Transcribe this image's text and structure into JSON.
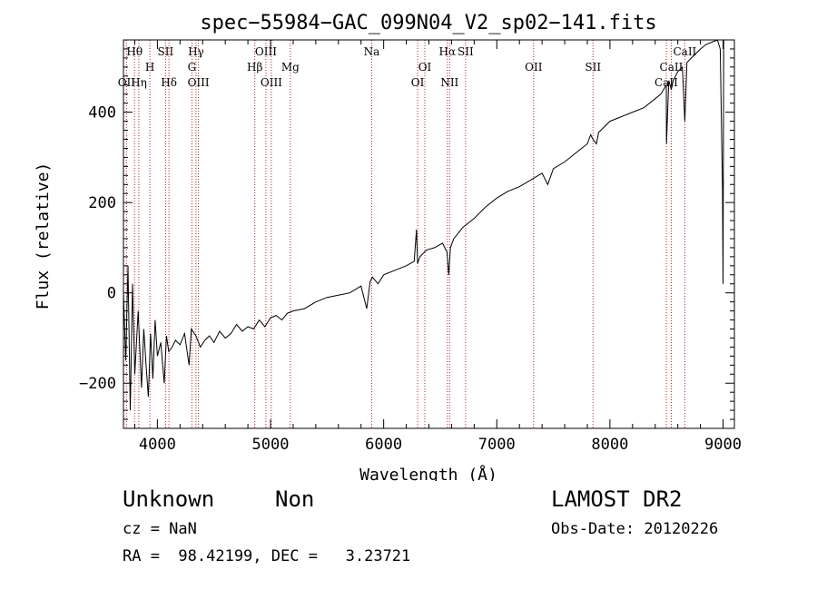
{
  "chart_data": {
    "type": "line",
    "title": "spec−55984−GAC_099N04_V2_sp02−141.fits",
    "xlabel": "Wavelength (Å)",
    "ylabel": "Flux (relative)",
    "xlim": [
      3700,
      9100
    ],
    "ylim": [
      -300,
      560
    ],
    "x_ticks": [
      4000,
      5000,
      6000,
      7000,
      8000,
      9000
    ],
    "y_ticks": [
      -200,
      0,
      200,
      400
    ],
    "line_color": "#000000",
    "marker_color": "#b22222",
    "spectrum": {
      "x": [
        3700,
        3720,
        3740,
        3760,
        3780,
        3800,
        3830,
        3860,
        3880,
        3900,
        3920,
        3940,
        3960,
        3980,
        4000,
        4030,
        4060,
        4080,
        4100,
        4130,
        4160,
        4200,
        4240,
        4280,
        4300,
        4340,
        4380,
        4420,
        4460,
        4500,
        4550,
        4600,
        4650,
        4700,
        4750,
        4800,
        4850,
        4900,
        4950,
        5000,
        5050,
        5100,
        5150,
        5200,
        5300,
        5400,
        5500,
        5600,
        5700,
        5800,
        5850,
        5880,
        5900,
        5950,
        6000,
        6100,
        6200,
        6270,
        6290,
        6300,
        6320,
        6380,
        6450,
        6520,
        6560,
        6575,
        6590,
        6620,
        6700,
        6800,
        6900,
        7000,
        7100,
        7200,
        7300,
        7400,
        7450,
        7500,
        7600,
        7700,
        7800,
        7830,
        7850,
        7880,
        7900,
        8000,
        8100,
        8200,
        8300,
        8400,
        8450,
        8498,
        8500,
        8520,
        8542,
        8560,
        8600,
        8640,
        8662,
        8680,
        8720,
        8760,
        8800,
        8850,
        8900,
        8950,
        8975,
        8995,
        9000,
        9005
      ],
      "y": [
        0,
        -150,
        60,
        -260,
        20,
        -180,
        -40,
        -210,
        -80,
        -160,
        -230,
        -90,
        -190,
        -60,
        -140,
        -110,
        -200,
        -95,
        -130,
        -120,
        -105,
        -115,
        -90,
        -160,
        -80,
        -95,
        -120,
        -105,
        -95,
        -110,
        -85,
        -100,
        -90,
        -70,
        -85,
        -75,
        -80,
        -60,
        -75,
        -55,
        -50,
        -60,
        -45,
        -40,
        -35,
        -20,
        -10,
        -5,
        0,
        15,
        -35,
        25,
        35,
        20,
        40,
        50,
        60,
        70,
        140,
        65,
        80,
        95,
        100,
        110,
        90,
        40,
        100,
        120,
        145,
        165,
        190,
        210,
        225,
        235,
        250,
        265,
        240,
        275,
        290,
        310,
        330,
        350,
        340,
        330,
        355,
        380,
        390,
        400,
        410,
        430,
        440,
        460,
        330,
        470,
        450,
        470,
        490,
        500,
        380,
        510,
        520,
        530,
        540,
        550,
        555,
        560,
        540,
        230,
        20,
        560
      ]
    },
    "line_markers": [
      {
        "label": "Hθ",
        "wl": 3798,
        "row": 1
      },
      {
        "label": "OII",
        "wl": 3727,
        "row": 3
      },
      {
        "label": "Hη",
        "wl": 3836,
        "row": 3
      },
      {
        "label": "H",
        "wl": 3934,
        "row": 2
      },
      {
        "label": "SII",
        "wl": 4072,
        "row": 1
      },
      {
        "label": "Hδ",
        "wl": 4102,
        "row": 3
      },
      {
        "label": "Hγ",
        "wl": 4341,
        "row": 1
      },
      {
        "label": "G",
        "wl": 4305,
        "row": 2
      },
      {
        "label": "OIII",
        "wl": 4363,
        "row": 3
      },
      {
        "label": "OIII",
        "wl": 4959,
        "row": 1
      },
      {
        "label": "Hβ",
        "wl": 4861,
        "row": 2
      },
      {
        "label": "OIII",
        "wl": 5007,
        "row": 3
      },
      {
        "label": "Mg",
        "wl": 5175,
        "row": 2
      },
      {
        "label": "Na",
        "wl": 5894,
        "row": 1
      },
      {
        "label": "OI",
        "wl": 6364,
        "row": 2
      },
      {
        "label": "OI",
        "wl": 6300,
        "row": 3
      },
      {
        "label": "Hα",
        "wl": 6563,
        "row": 1
      },
      {
        "label": "SII",
        "wl": 6724,
        "row": 1
      },
      {
        "label": "NII",
        "wl": 6583,
        "row": 3
      },
      {
        "label": "OII",
        "wl": 7325,
        "row": 2
      },
      {
        "label": "SII",
        "wl": 7850,
        "row": 2
      },
      {
        "label": "CaII",
        "wl": 8662,
        "row": 1
      },
      {
        "label": "CaII",
        "wl": 8542,
        "row": 2
      },
      {
        "label": "CaII",
        "wl": 8498,
        "row": 3
      }
    ]
  },
  "footer": {
    "object_class": "Unknown",
    "object_subclass": "Non",
    "survey": "LAMOST DR2",
    "cz": "cz = NaN",
    "obs_date": "Obs-Date: 20120226",
    "radec": "RA =  98.42199, DEC =   3.23721"
  }
}
